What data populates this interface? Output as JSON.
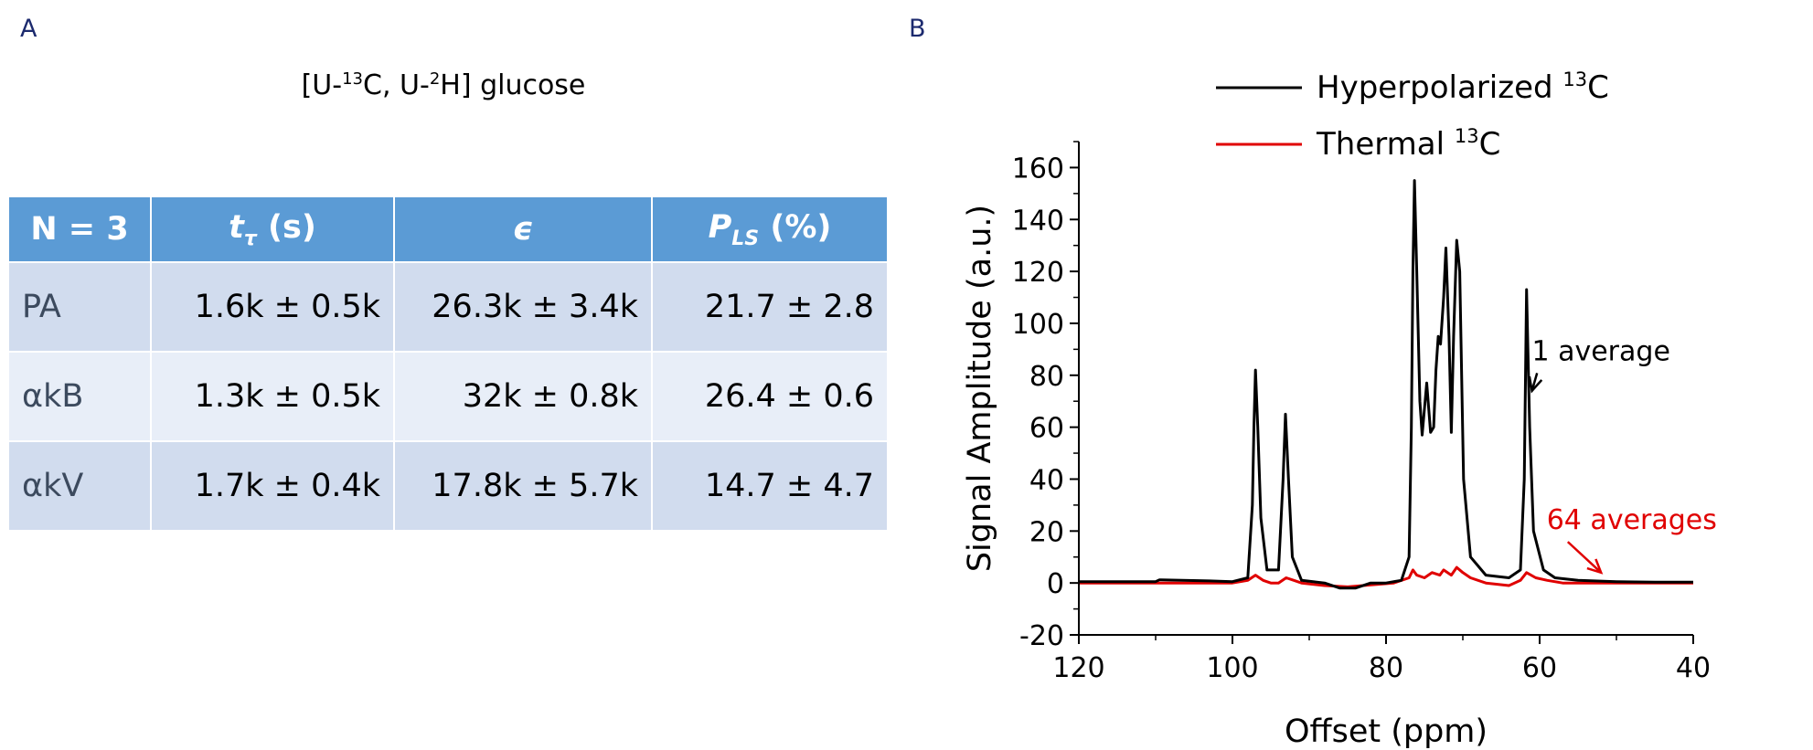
{
  "panels": {
    "a": "A",
    "b": "B"
  },
  "table": {
    "title": {
      "pre": "[U-",
      "sup1": "13",
      "mid": "C, U-",
      "sup2": "2",
      "post": "H] glucose"
    },
    "headers": [
      {
        "main": "N = 3"
      },
      {
        "main": "t",
        "sub": "τ",
        "post": " (s)"
      },
      {
        "main": "ϵ"
      },
      {
        "main": "P",
        "sub": "LS",
        "post": " (%)"
      }
    ],
    "rows": [
      {
        "label": "PA",
        "cells": [
          "1.6k ± 0.5k",
          "26.3k ± 3.4k",
          "21.7 ± 2.8"
        ]
      },
      {
        "label": "αkB",
        "cells": [
          "1.3k ± 0.5k",
          "32k ± 0.8k",
          "26.4 ± 0.6"
        ]
      },
      {
        "label": "αkV",
        "cells": [
          "1.7k ± 0.4k",
          "17.8k ± 5.7k",
          "14.7 ± 4.7"
        ]
      }
    ]
  },
  "chart_data": {
    "type": "line",
    "xlabel": "Offset (ppm)",
    "ylabel": "Signal Amplitude (a.u.)",
    "xlim": [
      120,
      40
    ],
    "ylim": [
      -20,
      170
    ],
    "xticks": [
      "120",
      "100",
      "80",
      "60",
      "40"
    ],
    "yticks": [
      "-20",
      "0",
      "20",
      "40",
      "60",
      "80",
      "100",
      "120",
      "140",
      "160"
    ],
    "grid": false,
    "legend": "top-right",
    "series": [
      {
        "name": "Hyperpolarized 13C",
        "color": "#000000",
        "points": [
          [
            120,
            0.5
          ],
          [
            110,
            0.5
          ],
          [
            109.5,
            1.2
          ],
          [
            103,
            0.8
          ],
          [
            100,
            0.5
          ],
          [
            98,
            2
          ],
          [
            97.4,
            30
          ],
          [
            97.2,
            60
          ],
          [
            97,
            82
          ],
          [
            96.7,
            60
          ],
          [
            96.3,
            25
          ],
          [
            95.5,
            5
          ],
          [
            94,
            5
          ],
          [
            93.4,
            40
          ],
          [
            93.1,
            65
          ],
          [
            92.7,
            40
          ],
          [
            92.2,
            10
          ],
          [
            91,
            1
          ],
          [
            88,
            0
          ],
          [
            86,
            -2
          ],
          [
            84,
            -2
          ],
          [
            82,
            0
          ],
          [
            80,
            0
          ],
          [
            78,
            1
          ],
          [
            77,
            10
          ],
          [
            76.7,
            60
          ],
          [
            76.5,
            120
          ],
          [
            76.3,
            155
          ],
          [
            76,
            120
          ],
          [
            75.6,
            70
          ],
          [
            75.3,
            57
          ],
          [
            74.7,
            77
          ],
          [
            74.2,
            58
          ],
          [
            73.8,
            60
          ],
          [
            73.5,
            82
          ],
          [
            73.2,
            95
          ],
          [
            72.9,
            92
          ],
          [
            72.5,
            110
          ],
          [
            72.2,
            129
          ],
          [
            71.8,
            95
          ],
          [
            71.5,
            58
          ],
          [
            71.2,
            95
          ],
          [
            70.8,
            132
          ],
          [
            70.4,
            120
          ],
          [
            69.9,
            40
          ],
          [
            69,
            10
          ],
          [
            67,
            3
          ],
          [
            64,
            2
          ],
          [
            62.5,
            5
          ],
          [
            62,
            40
          ],
          [
            61.7,
            113
          ],
          [
            61.3,
            60
          ],
          [
            60.8,
            20
          ],
          [
            59.5,
            5
          ],
          [
            58,
            2
          ],
          [
            55,
            1
          ],
          [
            50,
            0.5
          ],
          [
            45,
            0.3
          ],
          [
            40,
            0.3
          ]
        ]
      },
      {
        "name": "Thermal 13C",
        "color": "#e00000",
        "points": [
          [
            120,
            0
          ],
          [
            110,
            0
          ],
          [
            100,
            0
          ],
          [
            98,
            1
          ],
          [
            97,
            3
          ],
          [
            96,
            1
          ],
          [
            95,
            0
          ],
          [
            94,
            0
          ],
          [
            93,
            2
          ],
          [
            92,
            1
          ],
          [
            91,
            0
          ],
          [
            88,
            -1
          ],
          [
            85,
            -1.5
          ],
          [
            83,
            -1
          ],
          [
            81,
            -0.5
          ],
          [
            79,
            0
          ],
          [
            77,
            2
          ],
          [
            76.5,
            5
          ],
          [
            76,
            3
          ],
          [
            75,
            2
          ],
          [
            74,
            4
          ],
          [
            73,
            3
          ],
          [
            72.5,
            5
          ],
          [
            71.5,
            3
          ],
          [
            70.8,
            6
          ],
          [
            70,
            4
          ],
          [
            69,
            2
          ],
          [
            67,
            0
          ],
          [
            64,
            -1
          ],
          [
            62.5,
            1
          ],
          [
            61.7,
            4
          ],
          [
            60.5,
            2
          ],
          [
            59,
            1
          ],
          [
            57,
            0
          ],
          [
            55,
            0
          ],
          [
            50,
            0
          ],
          [
            45,
            0
          ],
          [
            40,
            0
          ]
        ]
      }
    ],
    "annotations": [
      {
        "text": "1 average",
        "color": "#000000",
        "x": 52,
        "y": 90,
        "target_x": 61,
        "target_y": 74
      },
      {
        "text": "64 averages",
        "color": "#e00000",
        "x": 48,
        "y": 25,
        "target_x": 52,
        "target_y": 4
      }
    ]
  }
}
